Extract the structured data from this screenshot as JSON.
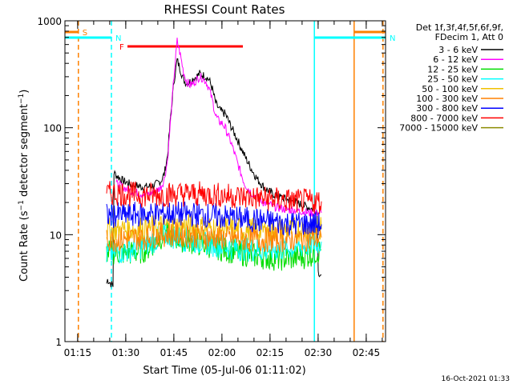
{
  "chart_data": {
    "type": "line",
    "title": "RHESSI Count Rates",
    "xlabel": "Start Time (05-Jul-06 01:11:02)",
    "ylabel": "Count Rate (s^-1 detector segment^-1)",
    "ylabel_main": "Count Rate (s",
    "ylabel_sup1": "−1",
    "ylabel_mid": " detector segment",
    "ylabel_sup2": "−1",
    "ylabel_end": ")",
    "y_scale": "log",
    "ylim": [
      1,
      1000
    ],
    "xlim_minutes": [
      0,
      100
    ],
    "x_ticks": [
      {
        "label": "01:15",
        "minutes": 3.97
      },
      {
        "label": "01:30",
        "minutes": 18.97
      },
      {
        "label": "01:45",
        "minutes": 33.97
      },
      {
        "label": "02:00",
        "minutes": 48.97
      },
      {
        "label": "02:15",
        "minutes": 63.97
      },
      {
        "label": "02:30",
        "minutes": 78.97
      },
      {
        "label": "02:45",
        "minutes": 93.97
      }
    ],
    "y_ticks": [
      {
        "label": "1",
        "value": 1
      },
      {
        "label": "10",
        "value": 10
      },
      {
        "label": "100",
        "value": 100
      },
      {
        "label": "1000",
        "value": 1000
      }
    ],
    "legend_title_1": "Det 1f,3f,4f,5f,6f,9f,",
    "legend_title_2": "FDecim 1, Att 0",
    "legend_placement": "right",
    "series": [
      {
        "name": "3 - 6 keV",
        "color": "#000000",
        "x": [
          13,
          13.3,
          15,
          15.3,
          16,
          18,
          20,
          22,
          24,
          26,
          28,
          30,
          31,
          32,
          33,
          34,
          35,
          36,
          37,
          38,
          39,
          40,
          41,
          42,
          43,
          44,
          45,
          46,
          47,
          48,
          49,
          50,
          52,
          54,
          56,
          58,
          60,
          62,
          64,
          66,
          68,
          70,
          72,
          74,
          76,
          78,
          78.7,
          79,
          80
        ],
        "y": [
          3.5,
          3.8,
          3.3,
          38,
          36,
          32,
          30,
          29,
          28,
          28,
          29,
          32,
          37,
          55,
          130,
          270,
          430,
          350,
          280,
          260,
          270,
          290,
          300,
          320,
          310,
          300,
          280,
          230,
          170,
          150,
          140,
          135,
          100,
          75,
          55,
          42,
          33,
          28,
          25,
          23,
          22,
          21,
          20,
          19,
          18,
          17,
          17,
          4.5,
          4.2
        ]
      },
      {
        "name": "6 - 12 keV",
        "color": "#ff00ff",
        "x": [
          16,
          18,
          20,
          22,
          24,
          26,
          28,
          30,
          31,
          32,
          33,
          34,
          35,
          36,
          37,
          38,
          39,
          40,
          41,
          42,
          43,
          44,
          45,
          46,
          47,
          48,
          49,
          50,
          52,
          54,
          56,
          58,
          60,
          62,
          64,
          66,
          68,
          70,
          72,
          74,
          76,
          78,
          80
        ],
        "y": [
          30,
          28,
          26,
          25,
          24,
          24,
          25,
          28,
          33,
          50,
          120,
          300,
          650,
          480,
          330,
          270,
          250,
          260,
          280,
          300,
          290,
          270,
          230,
          180,
          130,
          115,
          110,
          100,
          70,
          45,
          30,
          25,
          22,
          20,
          19,
          18,
          17.5,
          17,
          17,
          16.5,
          16,
          16,
          16
        ]
      },
      {
        "name": "12 - 25 keV",
        "color": "#00dd00",
        "x": [
          13,
          16,
          18,
          20,
          22,
          24,
          26,
          28,
          30,
          32,
          34,
          36,
          38,
          40,
          42,
          44,
          46,
          48,
          50,
          52,
          54,
          56,
          58,
          60,
          62,
          64,
          66,
          68,
          70,
          72,
          74,
          76,
          78,
          80
        ],
        "y": [
          7,
          6.8,
          6.7,
          6.7,
          6.8,
          7,
          7.5,
          8.5,
          9.5,
          10,
          9.5,
          9,
          8.8,
          8.5,
          8.2,
          8,
          7.8,
          7.5,
          7.2,
          7,
          6.8,
          6.6,
          6.4,
          6.3,
          6.2,
          6.1,
          6,
          6,
          6,
          6.1,
          6.2,
          6.4,
          6.8,
          7.2
        ]
      },
      {
        "name": "25 - 50 keV",
        "color": "#00ffff",
        "x": [
          13,
          16,
          18,
          20,
          22,
          24,
          26,
          28,
          30,
          32,
          34,
          36,
          38,
          40,
          42,
          44,
          46,
          48,
          50,
          52,
          54,
          56,
          58,
          60,
          62,
          64,
          66,
          68,
          70,
          72,
          74,
          76,
          78,
          80
        ],
        "y": [
          6.5,
          6.8,
          7,
          7.2,
          7.5,
          7.8,
          8.2,
          8.8,
          9.5,
          10,
          9.6,
          9.2,
          9,
          8.8,
          8.6,
          8.4,
          8.2,
          8,
          7.8,
          7.6,
          7.5,
          7.4,
          7.3,
          7.2,
          7.2,
          7.2,
          7.3,
          7.4,
          7.5,
          7.6,
          7.8,
          8,
          8.3,
          8.6
        ]
      },
      {
        "name": "50 - 100 keV",
        "color": "#f0c000",
        "x": [
          13,
          16,
          20,
          24,
          28,
          32,
          36,
          40,
          44,
          48,
          52,
          56,
          60,
          64,
          68,
          72,
          76,
          80
        ],
        "y": [
          11,
          11,
          11.2,
          11.4,
          11.8,
          12.2,
          12,
          11.8,
          11.6,
          11.4,
          11.2,
          11,
          11,
          11,
          11,
          11.1,
          11.2,
          11.3
        ]
      },
      {
        "name": "100 - 300 keV",
        "color": "#ff8000",
        "x": [
          13,
          16,
          20,
          24,
          28,
          32,
          36,
          40,
          44,
          48,
          52,
          56,
          60,
          64,
          68,
          72,
          76,
          80
        ],
        "y": [
          9,
          9,
          9.2,
          9.4,
          9.8,
          10.2,
          10,
          9.8,
          9.6,
          9.4,
          9.2,
          9,
          9,
          9,
          9,
          9.1,
          9.2,
          9.4
        ]
      },
      {
        "name": "300 - 800 keV",
        "color": "#0000ff",
        "x": [
          13,
          16,
          20,
          24,
          28,
          32,
          36,
          40,
          44,
          48,
          52,
          56,
          60,
          64,
          68,
          72,
          76,
          80
        ],
        "y": [
          15,
          15.2,
          15.3,
          15.5,
          15.6,
          15.8,
          15.6,
          15.4,
          15.2,
          14.8,
          14.4,
          14,
          13.6,
          13.2,
          12.9,
          12.7,
          12.6,
          12.5
        ]
      },
      {
        "name": "800 - 7000 keV",
        "color": "#ff0000",
        "x": [
          13,
          16,
          20,
          24,
          28,
          32,
          36,
          40,
          44,
          48,
          52,
          56,
          60,
          64,
          68,
          72,
          76,
          80
        ],
        "y": [
          24,
          24.5,
          24,
          23.5,
          23.5,
          23.8,
          24,
          24,
          23.8,
          23.5,
          23,
          22.5,
          22,
          21.5,
          21,
          20.5,
          20.5,
          20.5
        ]
      },
      {
        "name": "7000 - 15000 keV",
        "color": "#8b8b00",
        "x": [],
        "y": []
      }
    ],
    "annotations": [
      {
        "label": "S",
        "color": "#ff8000",
        "line_start": 0,
        "line_end": 4.2,
        "level": 800,
        "row": "top"
      },
      {
        "label": "N",
        "color": "#00ffff",
        "line_start": 0,
        "line_end": 14.5,
        "level": 680,
        "row": "second"
      },
      {
        "label": "N",
        "color": "#00ffff",
        "line_start": 77.8,
        "line_end": 100,
        "level": 680,
        "row": "second"
      },
      {
        "label": "",
        "color": "#ff8000",
        "line_start": 90.2,
        "line_end": 100,
        "level": 800,
        "row": "top"
      },
      {
        "label": "F",
        "color": "#ff0000",
        "line_start": 19.5,
        "line_end": 55.5,
        "level": 580,
        "row": "third"
      }
    ],
    "vertical_markers": [
      {
        "minutes": 4.2,
        "color": "#ff8000",
        "style": "dashed"
      },
      {
        "minutes": 14.5,
        "color": "#00ffff",
        "style": "dashed"
      },
      {
        "minutes": 77.8,
        "color": "#00ffff",
        "style": "solid"
      },
      {
        "minutes": 90.2,
        "color": "#ff8000",
        "style": "solid"
      },
      {
        "minutes": 99.2,
        "color": "#ff8000",
        "style": "dashed"
      }
    ]
  },
  "footer": {
    "timestamp": "16-Oct-2021 01:33"
  }
}
